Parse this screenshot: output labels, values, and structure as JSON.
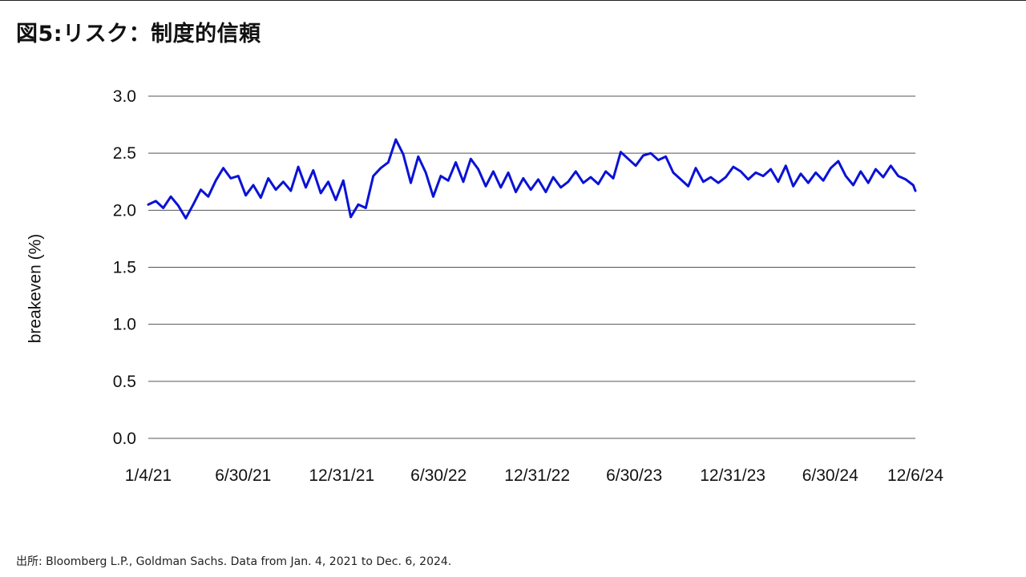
{
  "title": "図5:リスク：制度的信頼",
  "source": "出所: Bloomberg L.P., Goldman Sachs. Data from Jan. 4, 2021 to Dec. 6, 2024.",
  "colors": {
    "series": "#0a12d6",
    "grid": "#555555",
    "text": "#111111"
  },
  "chart_data": {
    "type": "line",
    "title": "",
    "xlabel": "",
    "ylabel": "breakeven (%)",
    "ylim": [
      0,
      3
    ],
    "xlim": [
      "2021-01-04",
      "2024-12-06"
    ],
    "grid": true,
    "legend": "none",
    "yticks": [
      "0.0",
      "0.5",
      "1.0",
      "1.5",
      "2.0",
      "2.5",
      "3.0"
    ],
    "xticks": [
      {
        "label": "1/4/21",
        "date": "2021-01-04"
      },
      {
        "label": "6/30/21",
        "date": "2021-06-30"
      },
      {
        "label": "12/31/21",
        "date": "2021-12-31"
      },
      {
        "label": "6/30/22",
        "date": "2022-06-30"
      },
      {
        "label": "12/31/22",
        "date": "2022-12-31"
      },
      {
        "label": "6/30/23",
        "date": "2023-06-30"
      },
      {
        "label": "12/31/23",
        "date": "2023-12-31"
      },
      {
        "label": "6/30/24",
        "date": "2024-06-30"
      },
      {
        "label": "12/6/24",
        "date": "2024-12-06"
      }
    ],
    "series": [
      {
        "x": [
          "2021-01-04",
          "2021-01-18",
          "2021-02-01",
          "2021-02-15",
          "2021-03-01",
          "2021-03-15",
          "2021-03-29",
          "2021-04-12",
          "2021-04-26",
          "2021-05-10",
          "2021-05-24",
          "2021-06-07",
          "2021-06-21",
          "2021-07-05",
          "2021-07-19",
          "2021-08-02",
          "2021-08-16",
          "2021-08-30",
          "2021-09-13",
          "2021-09-27",
          "2021-10-11",
          "2021-10-25",
          "2021-11-08",
          "2021-11-22",
          "2021-12-06",
          "2021-12-20",
          "2022-01-03",
          "2022-01-17",
          "2022-01-31",
          "2022-02-14",
          "2022-02-28",
          "2022-03-14",
          "2022-03-28",
          "2022-04-11",
          "2022-04-25",
          "2022-05-09",
          "2022-05-23",
          "2022-06-06",
          "2022-06-20",
          "2022-07-04",
          "2022-07-18",
          "2022-08-01",
          "2022-08-15",
          "2022-08-29",
          "2022-09-12",
          "2022-09-26",
          "2022-10-10",
          "2022-10-24",
          "2022-11-07",
          "2022-11-21",
          "2022-12-05",
          "2022-12-19",
          "2023-01-02",
          "2023-01-16",
          "2023-01-30",
          "2023-02-13",
          "2023-02-27",
          "2023-03-13",
          "2023-03-27",
          "2023-04-10",
          "2023-04-24",
          "2023-05-08",
          "2023-05-22",
          "2023-06-05",
          "2023-06-19",
          "2023-07-03",
          "2023-07-17",
          "2023-07-31",
          "2023-08-14",
          "2023-08-28",
          "2023-09-11",
          "2023-09-25",
          "2023-10-09",
          "2023-10-23",
          "2023-11-06",
          "2023-11-20",
          "2023-12-04",
          "2023-12-18",
          "2024-01-01",
          "2024-01-15",
          "2024-01-29",
          "2024-02-12",
          "2024-02-26",
          "2024-03-11",
          "2024-03-25",
          "2024-04-08",
          "2024-04-22",
          "2024-05-06",
          "2024-05-20",
          "2024-06-03",
          "2024-06-17",
          "2024-07-01",
          "2024-07-15",
          "2024-07-29",
          "2024-08-12",
          "2024-08-26",
          "2024-09-09",
          "2024-09-23",
          "2024-10-07",
          "2024-10-21",
          "2024-11-04",
          "2024-11-18",
          "2024-12-02",
          "2024-12-06"
        ],
        "values": [
          2.05,
          2.08,
          2.02,
          2.12,
          2.04,
          1.93,
          2.05,
          2.18,
          2.12,
          2.26,
          2.37,
          2.28,
          2.3,
          2.13,
          2.22,
          2.11,
          2.28,
          2.18,
          2.25,
          2.17,
          2.38,
          2.2,
          2.35,
          2.15,
          2.25,
          2.09,
          2.26,
          1.94,
          2.05,
          2.02,
          2.3,
          2.37,
          2.42,
          2.62,
          2.49,
          2.24,
          2.47,
          2.33,
          2.12,
          2.3,
          2.26,
          2.42,
          2.25,
          2.45,
          2.36,
          2.21,
          2.34,
          2.2,
          2.33,
          2.16,
          2.28,
          2.18,
          2.27,
          2.16,
          2.29,
          2.2,
          2.25,
          2.34,
          2.24,
          2.29,
          2.23,
          2.34,
          2.28,
          2.51,
          2.45,
          2.39,
          2.48,
          2.5,
          2.44,
          2.47,
          2.33,
          2.27,
          2.21,
          2.37,
          2.25,
          2.29,
          2.24,
          2.29,
          2.38,
          2.34,
          2.27,
          2.33,
          2.3,
          2.36,
          2.25,
          2.39,
          2.21,
          2.32,
          2.24,
          2.33,
          2.26,
          2.37,
          2.43,
          2.3,
          2.22,
          2.34,
          2.24,
          2.36,
          2.29,
          2.39,
          2.3,
          2.27,
          2.22,
          2.17
        ]
      }
    ]
  }
}
